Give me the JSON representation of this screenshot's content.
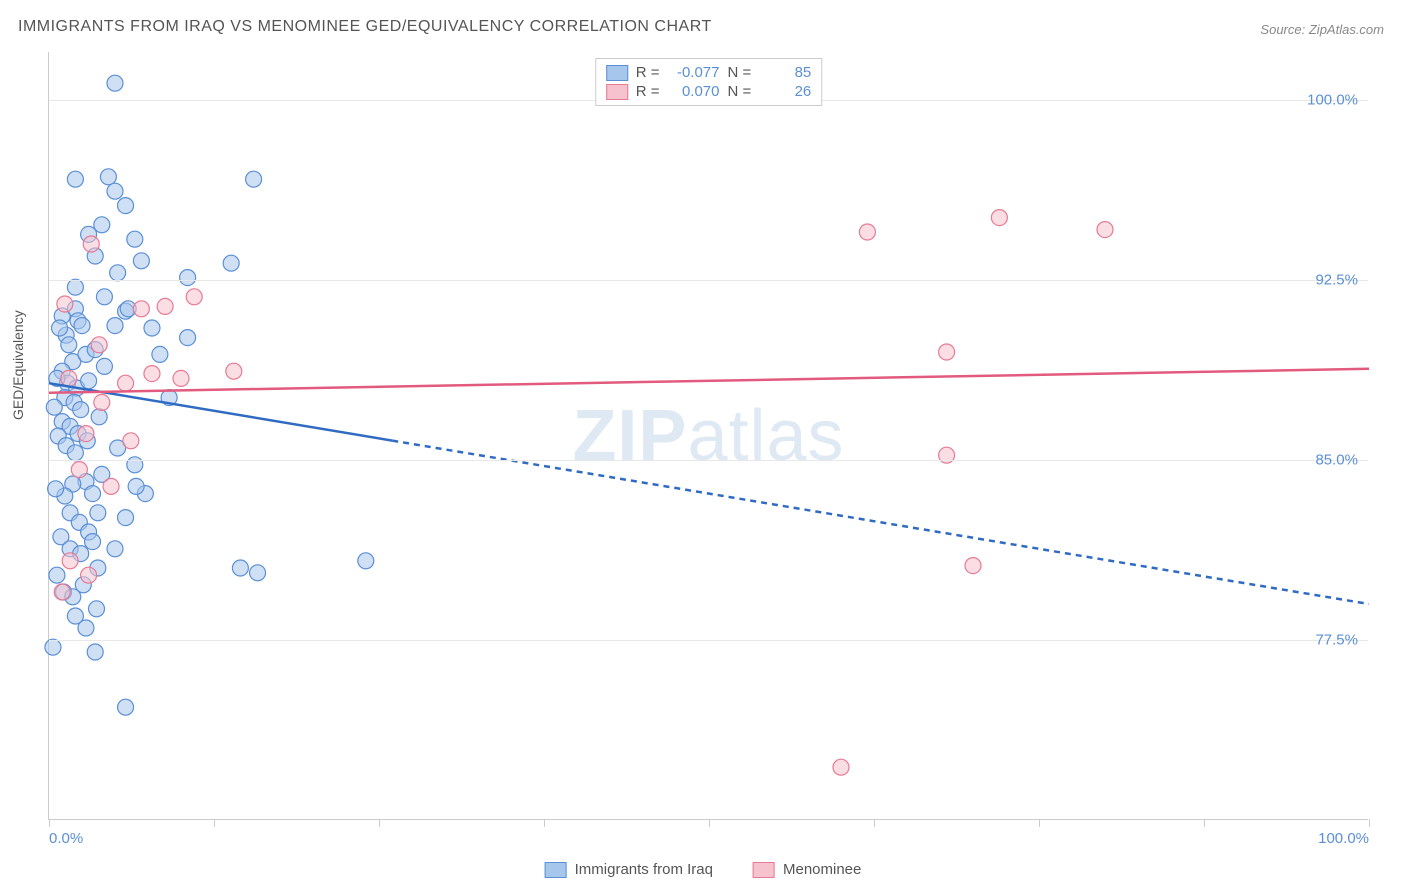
{
  "title": "IMMIGRANTS FROM IRAQ VS MENOMINEE GED/EQUIVALENCY CORRELATION CHART",
  "source_label": "Source:",
  "source_name": "ZipAtlas.com",
  "watermark": {
    "part1": "ZIP",
    "part2": "atlas"
  },
  "y_axis_label": "GED/Equivalency",
  "chart": {
    "type": "scatter",
    "xlim": [
      0,
      100
    ],
    "ylim": [
      70,
      102
    ],
    "x_ticks": [
      0,
      12.5,
      25,
      37.5,
      50,
      62.5,
      75,
      87.5,
      100
    ],
    "x_tick_labels": {
      "0": "0.0%",
      "100": "100.0%"
    },
    "y_ticks": [
      77.5,
      85.0,
      92.5,
      100.0
    ],
    "y_tick_labels": [
      "77.5%",
      "85.0%",
      "92.5%",
      "100.0%"
    ],
    "background_color": "#ffffff",
    "grid_color": "#e8e8e8",
    "axis_color": "#cccccc",
    "label_font_color": "#5b8fd6",
    "marker_radius": 8,
    "marker_stroke_width": 1.2,
    "series": [
      {
        "name": "Immigrants from Iraq",
        "legend_label": "Immigrants from Iraq",
        "fill_color": "#a7c6ec",
        "stroke_color": "#5b8fd6",
        "fill_opacity": 0.55,
        "r_value": "-0.077",
        "n_value": "85",
        "regression": {
          "x1": 0,
          "y1": 88.2,
          "x2": 100,
          "y2": 79.0,
          "solid_until_x": 26,
          "color": "#2f6bc2",
          "width": 2.5,
          "dash": "6,5"
        },
        "points": [
          [
            1,
            91
          ],
          [
            1.3,
            90.2
          ],
          [
            1.5,
            89.8
          ],
          [
            0.8,
            90.5
          ],
          [
            2,
            91.3
          ],
          [
            2.2,
            90.8
          ],
          [
            1.8,
            89.1
          ],
          [
            2.5,
            90.6
          ],
          [
            1,
            88.7
          ],
          [
            1.4,
            88.2
          ],
          [
            2.1,
            88
          ],
          [
            2.8,
            89.4
          ],
          [
            0.6,
            88.4
          ],
          [
            1.2,
            87.6
          ],
          [
            1.9,
            87.4
          ],
          [
            2.4,
            87.1
          ],
          [
            3,
            88.3
          ],
          [
            3.5,
            89.6
          ],
          [
            0.4,
            87.2
          ],
          [
            1,
            86.6
          ],
          [
            1.6,
            86.4
          ],
          [
            2.2,
            86.1
          ],
          [
            0.7,
            86
          ],
          [
            1.3,
            85.6
          ],
          [
            2,
            85.3
          ],
          [
            2.9,
            85.8
          ],
          [
            3.8,
            86.8
          ],
          [
            4.2,
            88.9
          ],
          [
            5,
            90.6
          ],
          [
            5.8,
            91.2
          ],
          [
            7.8,
            90.5
          ],
          [
            8.4,
            89.4
          ],
          [
            9.1,
            87.6
          ],
          [
            10.5,
            90.1
          ],
          [
            5.2,
            85.5
          ],
          [
            6.5,
            84.8
          ],
          [
            7.3,
            83.6
          ],
          [
            2.8,
            84.1
          ],
          [
            3.3,
            83.6
          ],
          [
            4,
            84.4
          ],
          [
            1.8,
            84
          ],
          [
            1.2,
            83.5
          ],
          [
            0.5,
            83.8
          ],
          [
            1.6,
            82.8
          ],
          [
            2.3,
            82.4
          ],
          [
            3,
            82
          ],
          [
            3.7,
            82.8
          ],
          [
            0.9,
            81.8
          ],
          [
            1.6,
            81.3
          ],
          [
            2.4,
            81.1
          ],
          [
            3.3,
            81.6
          ],
          [
            3.7,
            80.5
          ],
          [
            5,
            81.3
          ],
          [
            5.8,
            82.6
          ],
          [
            6.6,
            83.9
          ],
          [
            0.6,
            80.2
          ],
          [
            1.1,
            79.5
          ],
          [
            1.8,
            79.3
          ],
          [
            2.6,
            79.8
          ],
          [
            2,
            78.5
          ],
          [
            2.8,
            78
          ],
          [
            3.6,
            78.8
          ],
          [
            14.5,
            80.5
          ],
          [
            15.8,
            80.3
          ],
          [
            24,
            80.8
          ],
          [
            2,
            96.7
          ],
          [
            4.5,
            96.8
          ],
          [
            5,
            96.2
          ],
          [
            5.8,
            95.6
          ],
          [
            15.5,
            96.7
          ],
          [
            3,
            94.4
          ],
          [
            6.5,
            94.2
          ],
          [
            3.5,
            93.5
          ],
          [
            5.2,
            92.8
          ],
          [
            7,
            93.3
          ],
          [
            13.8,
            93.2
          ],
          [
            10.5,
            92.6
          ],
          [
            2,
            92.2
          ],
          [
            4.2,
            91.8
          ],
          [
            6,
            91.3
          ],
          [
            0.3,
            77.2
          ],
          [
            3.5,
            77
          ],
          [
            5.8,
            74.7
          ],
          [
            5,
            100.7
          ],
          [
            4,
            94.8
          ]
        ]
      },
      {
        "name": "Menominee",
        "legend_label": "Menominee",
        "fill_color": "#f6c2ce",
        "stroke_color": "#e77a95",
        "fill_opacity": 0.55,
        "r_value": "0.070",
        "n_value": "26",
        "regression": {
          "x1": 0,
          "y1": 87.8,
          "x2": 100,
          "y2": 88.8,
          "solid_until_x": 100,
          "color": "#e25a7d",
          "width": 2.5,
          "dash": "none"
        },
        "points": [
          [
            3.2,
            94
          ],
          [
            1.2,
            91.5
          ],
          [
            7,
            91.3
          ],
          [
            8.8,
            91.4
          ],
          [
            11,
            91.8
          ],
          [
            3.8,
            89.8
          ],
          [
            1.5,
            88.4
          ],
          [
            4,
            87.4
          ],
          [
            5.8,
            88.2
          ],
          [
            7.8,
            88.6
          ],
          [
            10,
            88.4
          ],
          [
            14,
            88.7
          ],
          [
            2.8,
            86.1
          ],
          [
            6.2,
            85.8
          ],
          [
            2.3,
            84.6
          ],
          [
            4.7,
            83.9
          ],
          [
            1.6,
            80.8
          ],
          [
            3,
            80.2
          ],
          [
            1,
            79.5
          ],
          [
            62,
            94.5
          ],
          [
            72,
            95.1
          ],
          [
            80,
            94.6
          ],
          [
            68,
            89.5
          ],
          [
            68,
            85.2
          ],
          [
            70,
            80.6
          ],
          [
            60,
            72.2
          ]
        ]
      }
    ]
  },
  "legend_top": {
    "r_label": "R =",
    "n_label": "N ="
  }
}
